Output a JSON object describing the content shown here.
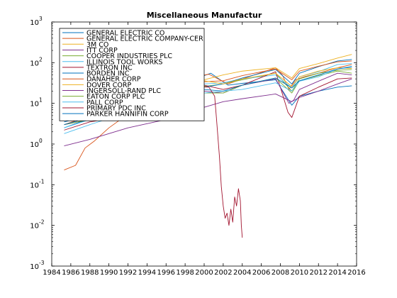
{
  "chart_data": {
    "type": "line",
    "title": "Miscellaneous Manufactur",
    "xlabel": "",
    "ylabel": "",
    "xlim": [
      1984,
      2016
    ],
    "ylim": [
      0.001,
      1000
    ],
    "yscale": "log",
    "grid": false,
    "legend_position": "top-left",
    "x_ticks": [
      "1984",
      "1986",
      "1988",
      "1990",
      "1992",
      "1994",
      "1996",
      "1998",
      "2000",
      "2002",
      "2004",
      "2006",
      "2008",
      "2010",
      "2012",
      "2014",
      "2016"
    ],
    "y_ticks": [
      {
        "value": 0.001,
        "base": "10",
        "exp": "-3"
      },
      {
        "value": 0.01,
        "base": "10",
        "exp": "-2"
      },
      {
        "value": 0.1,
        "base": "10",
        "exp": "-1"
      },
      {
        "value": 1,
        "base": "10",
        "exp": "0"
      },
      {
        "value": 10,
        "base": "10",
        "exp": "1"
      },
      {
        "value": 100,
        "base": "10",
        "exp": "2"
      },
      {
        "value": 1000,
        "base": "10",
        "exp": "3"
      }
    ],
    "series": [
      {
        "name": "GENERAL ELECTRIC CO",
        "color": "#0072bd",
        "x": [
          1985.3,
          1987,
          1990,
          1994,
          1998,
          2000,
          2000.7,
          2002.5,
          2004,
          2007.5,
          2009.2,
          2010,
          2012,
          2014,
          2015.5
        ],
        "y": [
          2.5,
          3.5,
          5,
          8,
          22,
          48,
          55,
          28,
          31,
          38,
          9,
          15,
          20,
          25,
          27
        ]
      },
      {
        "name": "GENERAL ELECTRIC COMPANY-CER",
        "color": "#d95319",
        "x": [
          1985.3,
          1986.5,
          1987.5,
          1988.5,
          1990,
          1993,
          1996,
          1999,
          2000.5,
          2002.5,
          2004,
          2007.5,
          2008.2,
          2008.9,
          2009.6,
          2010.5,
          2012,
          2014,
          2015.5
        ],
        "y": [
          0.23,
          0.3,
          0.8,
          1.2,
          2.5,
          8,
          20,
          45,
          52,
          30,
          40,
          75,
          50,
          22,
          38,
          45,
          55,
          75,
          90
        ]
      },
      {
        "name": "3M CO",
        "color": "#edb120",
        "x": [
          1985.3,
          1988,
          1992,
          1996,
          2000,
          2002,
          2004,
          2007.5,
          2009.2,
          2010,
          2012,
          2014,
          2015.5
        ],
        "y": [
          6,
          9,
          14,
          22,
          38,
          50,
          62,
          75,
          42,
          72,
          95,
          130,
          160
        ]
      },
      {
        "name": "ITT CORP",
        "color": "#7e2f8e",
        "x": [
          1985.3,
          1988,
          1992,
          1996,
          2000,
          2002,
          2004,
          2007.5,
          2009.2,
          2010,
          2012,
          2014,
          2015.5
        ],
        "y": [
          0.9,
          1.3,
          2.5,
          4,
          8,
          11,
          13,
          17,
          11,
          14,
          20,
          30,
          40
        ]
      },
      {
        "name": "COOPER INDUSTRIES PLC",
        "color": "#77ac30",
        "x": [
          1985.3,
          1988,
          1992,
          1996,
          2000,
          2002,
          2004,
          2007.5,
          2009.2,
          2010,
          2012,
          2014,
          2015.5
        ],
        "y": [
          4.5,
          7,
          10,
          16,
          26,
          30,
          38,
          55,
          20,
          40,
          55,
          65,
          68
        ]
      },
      {
        "name": "ILLINOIS TOOL WORKS",
        "color": "#4dbeee",
        "x": [
          1985.3,
          1988,
          1992,
          1996,
          2000,
          2002,
          2004,
          2007.5,
          2009.2,
          2010,
          2012,
          2014,
          2015.5
        ],
        "y": [
          1.8,
          3,
          6,
          14,
          30,
          32,
          40,
          50,
          24,
          45,
          60,
          90,
          95
        ]
      },
      {
        "name": "TEXTRON INC",
        "color": "#a2142f",
        "x": [
          1985.3,
          1988,
          1992,
          1996,
          2000,
          2002,
          2004,
          2007.5,
          2008.8,
          2009.2,
          2010,
          2012,
          2014,
          2015.5
        ],
        "y": [
          2.2,
          3.5,
          5,
          14,
          28,
          22,
          28,
          60,
          6,
          4.5,
          15,
          25,
          40,
          42
        ]
      },
      {
        "name": "BORDEN INC",
        "color": "#0072bd",
        "x": [
          1985.3,
          1988,
          1992,
          1996,
          2000,
          2002,
          2004,
          2007.5,
          2009.2,
          2010,
          2012,
          2014,
          2015.5
        ],
        "y": [
          3.5,
          5,
          7,
          15,
          25,
          30,
          42,
          68,
          30,
          55,
          80,
          110,
          120
        ]
      },
      {
        "name": "DANAHER CORP",
        "color": "#d95319",
        "x": [
          1985.3,
          1988,
          1992,
          1996,
          2000,
          2002,
          2004,
          2007.5,
          2009.2,
          2010,
          2012,
          2014,
          2015.5
        ],
        "y": [
          3,
          5,
          8,
          16,
          34,
          36,
          48,
          70,
          38,
          62,
          82,
          105,
          110
        ]
      },
      {
        "name": "DOVER CORP",
        "color": "#edb120",
        "x": [
          1985.3,
          1988,
          1992,
          1996,
          2000,
          2002,
          2004,
          2007.5,
          2009.2,
          2010,
          2012,
          2014,
          2015.5
        ],
        "y": [
          4,
          6,
          9,
          16,
          36,
          30,
          40,
          55,
          26,
          45,
          62,
          75,
          72
        ]
      },
      {
        "name": "INGERSOLL-RAND PLC",
        "color": "#7e2f8e",
        "x": [
          1985.3,
          1988,
          1992,
          1996,
          2000,
          2002,
          2004,
          2007.5,
          2008.9,
          2009.4,
          2010,
          2012,
          2014,
          2015.5
        ],
        "y": [
          3,
          4,
          6,
          10,
          20,
          18,
          28,
          40,
          10,
          12,
          22,
          35,
          55,
          50
        ]
      },
      {
        "name": "EATON CORP PLC",
        "color": "#77ac30",
        "x": [
          1985.3,
          1988,
          1992,
          1996,
          2000,
          2002,
          2004,
          2007.5,
          2009.2,
          2010,
          2012,
          2014,
          2015.5
        ],
        "y": [
          3,
          4,
          6,
          10,
          18,
          18,
          28,
          42,
          18,
          36,
          48,
          62,
          55
        ]
      },
      {
        "name": "PALL CORP",
        "color": "#4dbeee",
        "x": [
          1985.3,
          1988,
          1992,
          1996,
          2000,
          2002,
          2004,
          2007.5,
          2009.2,
          2010,
          2012,
          2014,
          2015.5
        ],
        "y": [
          2.5,
          4,
          7,
          12,
          18,
          20,
          22,
          32,
          20,
          35,
          45,
          70,
          82
        ]
      },
      {
        "name": "PRIMARY PDC INC",
        "color": "#a2142f",
        "x": [
          1994.5,
          1997,
          1999,
          2000.5,
          2001.1,
          2001.3,
          2001.6,
          2001.8,
          2002,
          2002.2,
          2002.4,
          2002.6,
          2002.8,
          2003,
          2003.2,
          2003.4,
          2003.6,
          2003.8,
          2003.9,
          2004
        ],
        "y": [
          30,
          28,
          26,
          25,
          15,
          4,
          0.5,
          0.09,
          0.03,
          0.015,
          0.02,
          0.01,
          0.025,
          0.012,
          0.05,
          0.03,
          0.08,
          0.04,
          0.01,
          0.005
        ]
      },
      {
        "name": "PARKER HANNIFIN CORP",
        "color": "#0072bd",
        "x": [
          1985.3,
          1988,
          1992,
          1996,
          2000,
          2002,
          2004,
          2007.5,
          2009.2,
          2010,
          2012,
          2014,
          2015.5
        ],
        "y": [
          3,
          4.5,
          7,
          12,
          22,
          20,
          28,
          42,
          24,
          36,
          50,
          70,
          78
        ]
      }
    ]
  }
}
